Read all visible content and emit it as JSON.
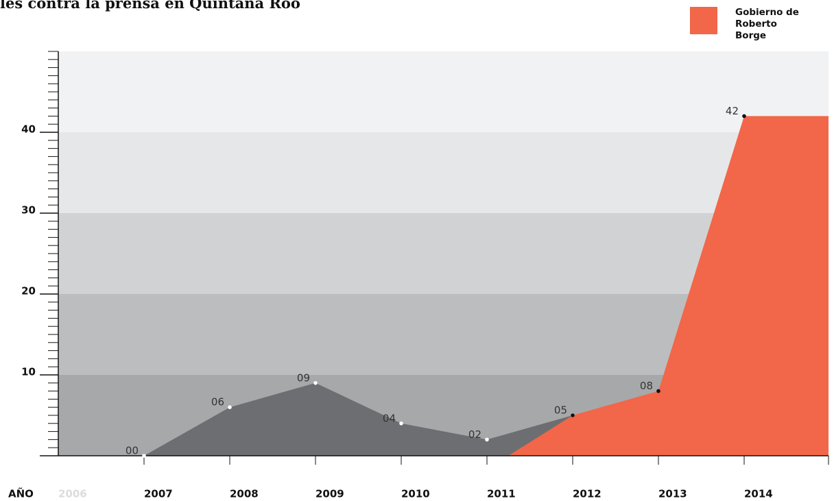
{
  "chart_data": {
    "type": "area",
    "title": "les contra la prensa en Quintana Roo",
    "x_label": "AÑO",
    "categories": [
      "2006",
      "2007",
      "2008",
      "2009",
      "2010",
      "2011",
      "2012",
      "2013",
      "2014"
    ],
    "series": [
      {
        "color": "#6d6e71",
        "values": [
          null,
          0,
          6,
          9,
          4,
          2,
          5,
          null,
          null
        ],
        "value_labels": [
          null,
          "00",
          "06",
          "09",
          "04",
          "02",
          "05",
          null,
          null
        ]
      },
      {
        "name": "Gobierno de Roberto Borge",
        "color": "#f26649",
        "values": [
          null,
          null,
          null,
          null,
          null,
          null,
          5,
          8,
          42
        ],
        "value_labels": [
          null,
          null,
          null,
          null,
          null,
          null,
          null,
          "08",
          "42"
        ]
      }
    ],
    "ylim": [
      0,
      50
    ],
    "yticks": [
      10,
      20,
      30,
      40
    ],
    "band_colors": [
      "#a7a8aa",
      "#bcbdbf",
      "#d1d2d4",
      "#e6e7e8",
      "#f1f2f3"
    ]
  }
}
